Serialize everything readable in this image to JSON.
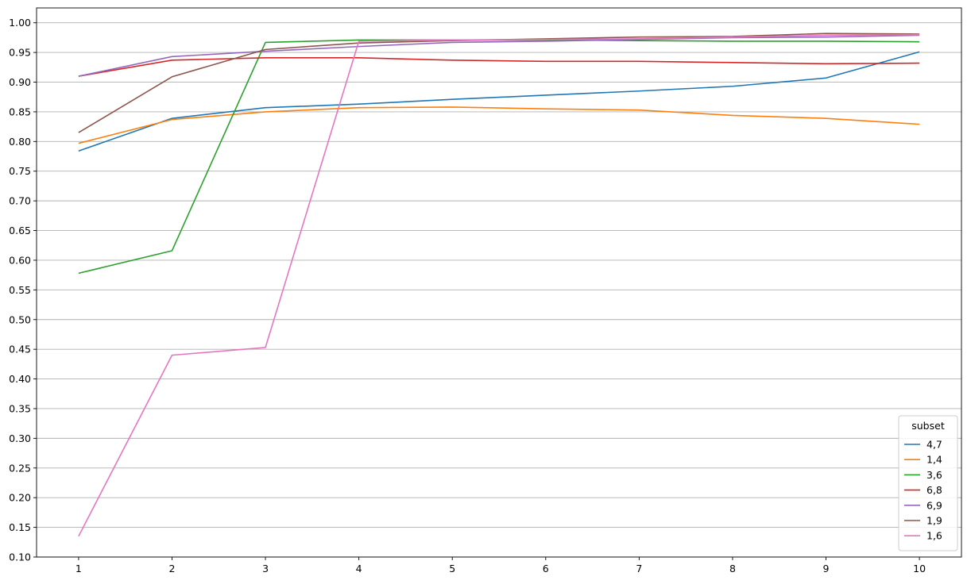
{
  "chart_data": {
    "type": "line",
    "x": [
      1,
      2,
      3,
      4,
      5,
      6,
      7,
      8,
      9,
      10
    ],
    "xticks": [
      1,
      2,
      3,
      4,
      5,
      6,
      7,
      8,
      9,
      10
    ],
    "xlim": [
      0.55,
      10.45
    ],
    "ylim": [
      0.1,
      1.025
    ],
    "yticks": [
      "0.10",
      "0.15",
      "0.20",
      "0.25",
      "0.30",
      "0.35",
      "0.40",
      "0.45",
      "0.50",
      "0.55",
      "0.60",
      "0.65",
      "0.70",
      "0.75",
      "0.80",
      "0.85",
      "0.90",
      "0.95",
      "1.00"
    ],
    "grid": "horizontal",
    "legend": {
      "title": "subset",
      "placement": "lower-right"
    },
    "series": [
      {
        "name": "4,7",
        "color": "#1f77b4",
        "values": [
          0.784,
          0.839,
          0.857,
          0.863,
          0.871,
          0.878,
          0.885,
          0.893,
          0.907,
          0.951
        ]
      },
      {
        "name": "1,4",
        "color": "#ff7f0e",
        "values": [
          0.797,
          0.837,
          0.85,
          0.857,
          0.858,
          0.855,
          0.853,
          0.844,
          0.839,
          0.829
        ]
      },
      {
        "name": "3,6",
        "color": "#2ca02c",
        "values": [
          0.578,
          0.616,
          0.967,
          0.971,
          0.971,
          0.971,
          0.97,
          0.969,
          0.969,
          0.968
        ]
      },
      {
        "name": "6,8",
        "color": "#d62728",
        "values": [
          0.91,
          0.937,
          0.941,
          0.941,
          0.937,
          0.935,
          0.935,
          0.933,
          0.931,
          0.932
        ]
      },
      {
        "name": "6,9",
        "color": "#9467bd",
        "values": [
          0.91,
          0.943,
          0.952,
          0.96,
          0.967,
          0.969,
          0.972,
          0.975,
          0.976,
          0.979
        ]
      },
      {
        "name": "1,9",
        "color": "#8c564b",
        "values": [
          0.815,
          0.909,
          0.955,
          0.966,
          0.97,
          0.973,
          0.976,
          0.977,
          0.982,
          0.981
        ]
      },
      {
        "name": "1,6",
        "color": "#e377c2",
        "values": [
          0.135,
          0.44,
          0.453,
          0.969,
          0.971,
          0.972,
          0.973,
          0.976,
          0.979,
          0.98
        ]
      }
    ]
  }
}
